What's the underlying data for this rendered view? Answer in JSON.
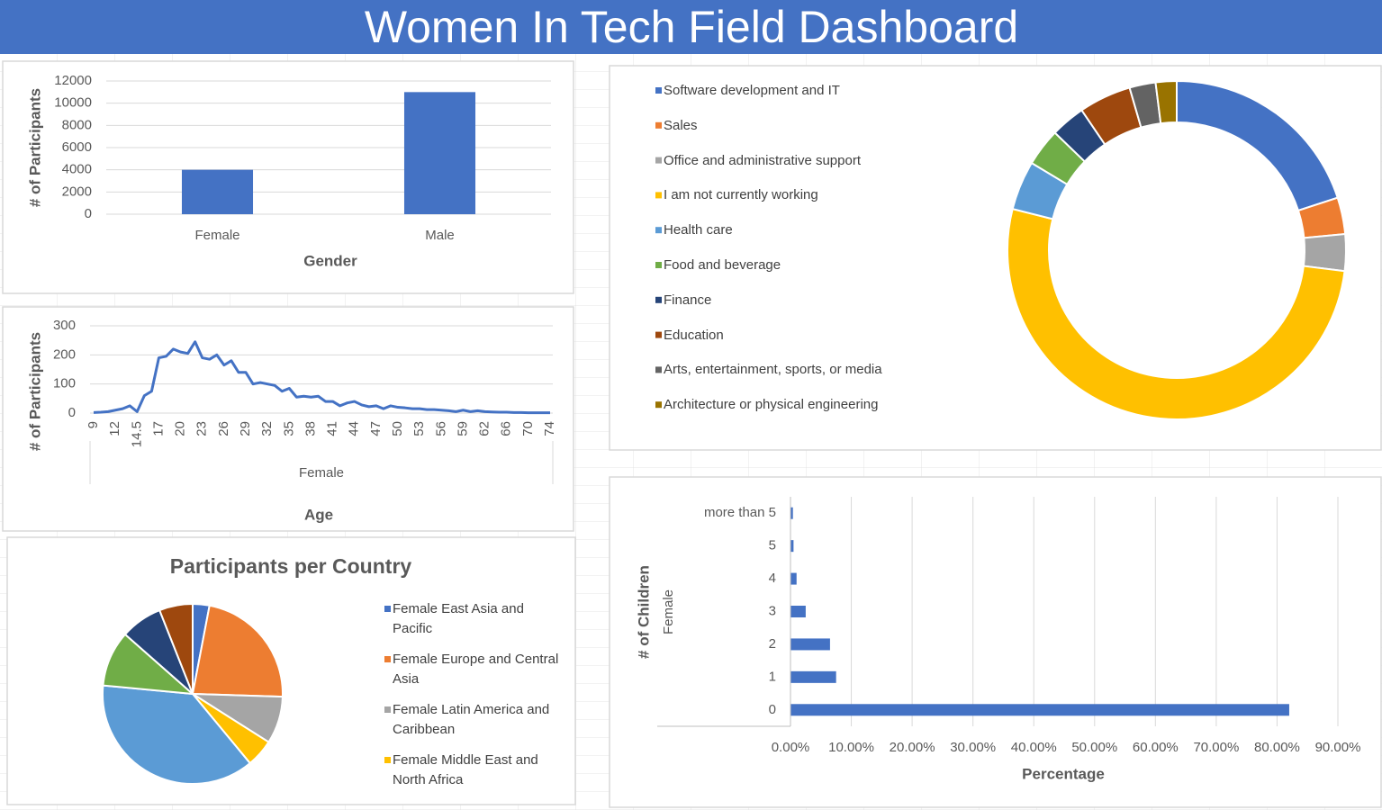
{
  "title": "Women In Tech Field Dashboard",
  "chart_data": [
    {
      "type": "bar",
      "categories": [
        "Female",
        "Male"
      ],
      "values": [
        4000,
        11000
      ],
      "color": "#4472c4",
      "ylim": [
        0,
        12000
      ],
      "yticks": [
        0,
        2000,
        4000,
        6000,
        8000,
        10000,
        12000
      ],
      "x_label": "Gender",
      "y_label": "# of Participants",
      "grid": true
    },
    {
      "type": "line",
      "categories": [
        "9",
        null,
        null,
        "12",
        null,
        null,
        "14.5",
        null,
        null,
        "17",
        null,
        null,
        "20",
        null,
        null,
        "23",
        null,
        null,
        "26",
        null,
        null,
        "29",
        null,
        null,
        "32",
        null,
        null,
        "35",
        null,
        null,
        "38",
        null,
        null,
        "41",
        null,
        null,
        "44",
        null,
        null,
        "47",
        null,
        null,
        "50",
        null,
        null,
        "53",
        null,
        null,
        "56",
        null,
        null,
        "59",
        null,
        null,
        "62",
        null,
        null,
        "66",
        null,
        null,
        "70",
        null,
        null,
        "74"
      ],
      "series": [
        {
          "name": "Female",
          "color": "#4472c4",
          "values": [
            2,
            3,
            5,
            10,
            15,
            25,
            5,
            60,
            75,
            190,
            195,
            220,
            210,
            205,
            245,
            190,
            185,
            200,
            165,
            180,
            140,
            140,
            100,
            105,
            100,
            95,
            75,
            85,
            55,
            58,
            55,
            58,
            40,
            40,
            25,
            35,
            40,
            28,
            22,
            25,
            15,
            25,
            20,
            18,
            15,
            15,
            12,
            12,
            10,
            8,
            5,
            10,
            5,
            8,
            5,
            4,
            3,
            3,
            2,
            2,
            1,
            1,
            1,
            1
          ]
        }
      ],
      "ylim": [
        0,
        300
      ],
      "yticks": [
        0,
        100,
        200,
        300
      ],
      "x_label": "Age",
      "y_label": "# of Participants",
      "grid": true
    },
    {
      "type": "doughnut",
      "categories": [
        "Software development and IT",
        "Sales",
        "Office and administrative support",
        "I am not currently working",
        "Health care",
        "Food and beverage",
        "Finance",
        "Education",
        "Arts, entertainment, sports, or media",
        "Architecture or physical engineering"
      ],
      "values": [
        20,
        3.5,
        3.5,
        52,
        4.7,
        3.6,
        3.3,
        5,
        2.5,
        2
      ],
      "colors": [
        "#4472c4",
        "#ed7d31",
        "#a5a5a5",
        "#ffc000",
        "#5b9bd5",
        "#70ad47",
        "#264478",
        "#9e480e",
        "#636363",
        "#997300"
      ],
      "legend": "left"
    },
    {
      "type": "pie",
      "title": "Participants per Country",
      "categories": [
        "Female East Asia and Pacific",
        "Female Europe and Central Asia",
        "Female Latin America and Caribbean",
        "Female Middle East and North Africa",
        null,
        null,
        null,
        null
      ],
      "values": [
        3,
        22.5,
        8.5,
        5,
        37.5,
        10,
        7.5,
        6
      ],
      "colors": [
        "#4472c4",
        "#ed7d31",
        "#a5a5a5",
        "#ffc000",
        "#5b9bd5",
        "#70ad47",
        "#264478",
        "#9e480e"
      ],
      "legend": "right"
    },
    {
      "type": "hbar",
      "categories": [
        "0",
        "1",
        "2",
        "3",
        "4",
        "5",
        "more than 5"
      ],
      "series": [
        {
          "name": "Female",
          "color": "#4472c4",
          "values": [
            82,
            7.5,
            6.5,
            2.5,
            1,
            0.5,
            0.4
          ]
        }
      ],
      "xlim": [
        0,
        90
      ],
      "xticks": [
        {
          "value": 0,
          "label": "0.00%"
        },
        {
          "value": 10,
          "label": "10.00%"
        },
        {
          "value": 20,
          "label": "20.00%"
        },
        {
          "value": 30,
          "label": "30.00%"
        },
        {
          "value": 40,
          "label": "40.00%"
        },
        {
          "value": 50,
          "label": "50.00%"
        },
        {
          "value": 60,
          "label": "60.00%"
        },
        {
          "value": 70,
          "label": "70.00%"
        },
        {
          "value": 80,
          "label": "80.00%"
        },
        {
          "value": 90,
          "label": "90.00%"
        }
      ],
      "x_label": "Percentage",
      "y_label": "# of Children",
      "grid": true
    }
  ]
}
